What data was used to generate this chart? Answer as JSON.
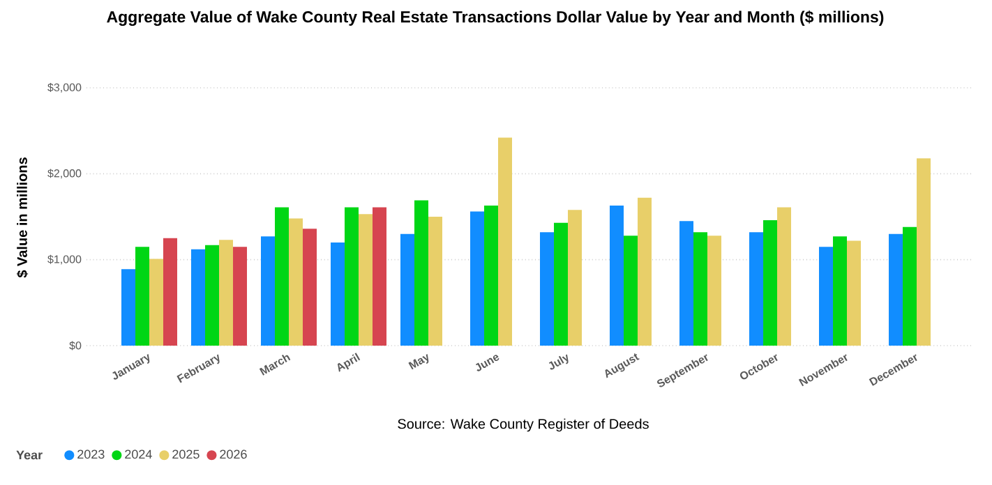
{
  "chart_data": {
    "type": "bar",
    "title": "Aggregate Value of Wake County Real Estate Transactions Dollar Value by Year and Month ($ millions)",
    "ylabel": "$ Value in millions",
    "annotations": [
      "Source: Wake County Register of Deeds"
    ],
    "legend_title": "Year",
    "categories": [
      "January",
      "February",
      "March",
      "April",
      "May",
      "June",
      "July",
      "August",
      "September",
      "October",
      "November",
      "December"
    ],
    "series": [
      {
        "name": "2023",
        "color": "#118dff",
        "values": [
          890,
          1120,
          1270,
          1200,
          1300,
          1560,
          1320,
          1630,
          1450,
          1320,
          1150,
          1300
        ]
      },
      {
        "name": "2024",
        "color": "#00d615",
        "values": [
          1150,
          1170,
          1610,
          1610,
          1690,
          1630,
          1430,
          1280,
          1320,
          1460,
          1270,
          1380
        ]
      },
      {
        "name": "2025",
        "color": "#e8cf69",
        "values": [
          1010,
          1230,
          1480,
          1530,
          1500,
          2420,
          1580,
          1720,
          1280,
          1610,
          1220,
          2180
        ]
      },
      {
        "name": "2026",
        "color": "#d64550",
        "values": [
          1250,
          1150,
          1360,
          1610,
          null,
          null,
          null,
          null,
          null,
          null,
          null,
          null
        ]
      }
    ],
    "ylim": [
      0,
      3000
    ],
    "yticks": [
      {
        "value": 0,
        "label": "$0"
      },
      {
        "value": 1000,
        "label": "$1,000"
      },
      {
        "value": 2000,
        "label": "$2,000"
      },
      {
        "value": 3000,
        "label": "$3,000"
      }
    ],
    "grid": "y",
    "legend": "bottom left"
  }
}
